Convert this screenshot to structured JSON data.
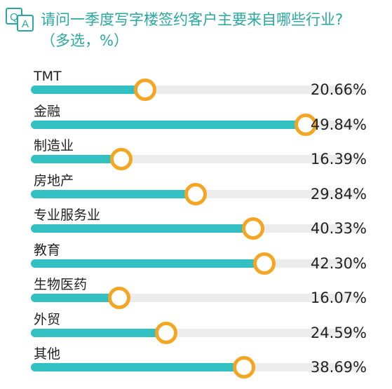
{
  "header": {
    "qa_q": "Q",
    "qa_a": "A",
    "title": "请问一季度写字楼签约客户主要来自哪些行业?",
    "subtitle": "（多选，%）"
  },
  "colors": {
    "accent": "#2aa8a0",
    "bar": "#32c0c2",
    "track": "#ececec",
    "knob": "#f4a623"
  },
  "chart_data": {
    "type": "bar",
    "orientation": "horizontal",
    "title": "请问一季度写字楼签约客户主要来自哪些行业?",
    "categories": [
      "TMT",
      "金融",
      "制造业",
      "房地产",
      "专业服务业",
      "教育",
      "生物医药",
      "外贸",
      "其他"
    ],
    "values": [
      20.66,
      49.84,
      16.39,
      29.84,
      40.33,
      42.3,
      16.07,
      24.59,
      38.69
    ],
    "value_labels": [
      "20.66%",
      "49.84%",
      "16.39%",
      "29.84%",
      "40.33%",
      "42.30%",
      "16.07%",
      "24.59%",
      "38.69%"
    ],
    "xlim": [
      0,
      60
    ]
  }
}
